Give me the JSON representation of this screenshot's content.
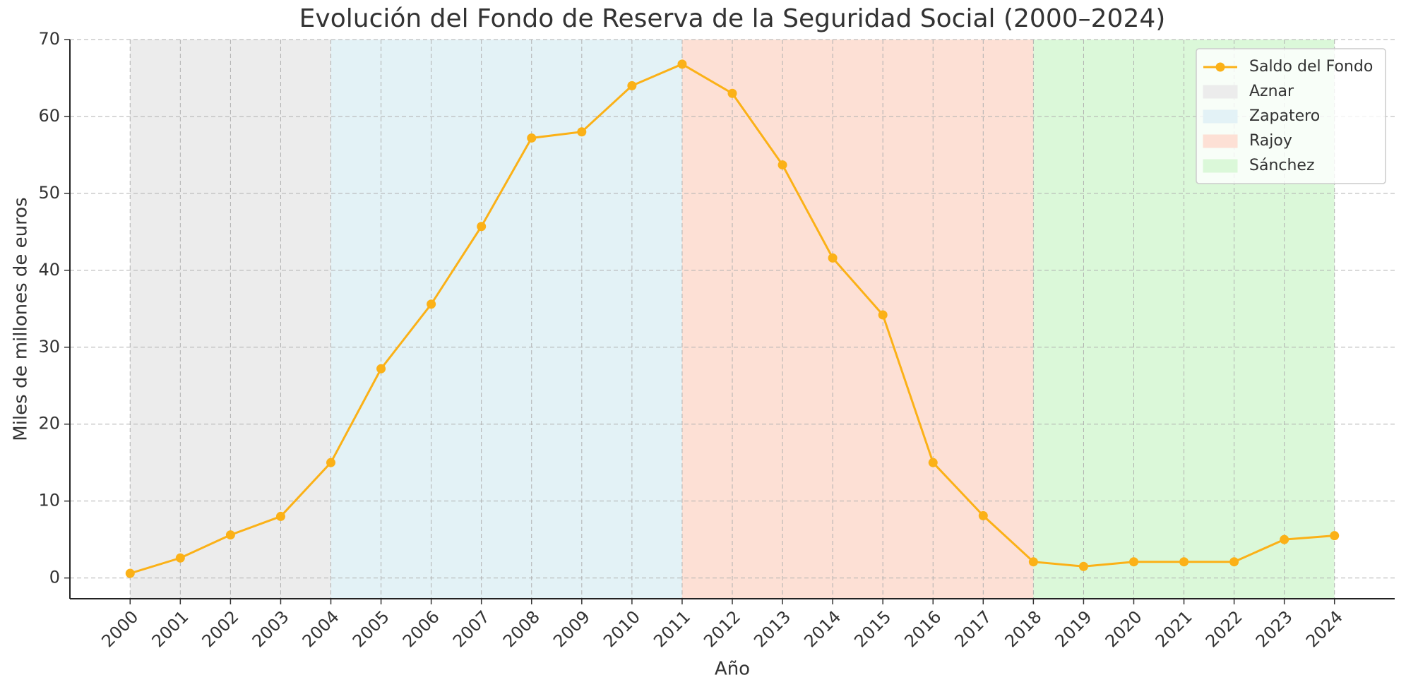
{
  "chart_data": {
    "type": "line",
    "title": "Evolución del Fondo de Reserva de la Seguridad Social (2000–2024)",
    "x_label": "Año",
    "y_label": "Miles de millones de euros",
    "x": [
      2000,
      2001,
      2002,
      2003,
      2004,
      2005,
      2006,
      2007,
      2008,
      2009,
      2010,
      2011,
      2012,
      2013,
      2014,
      2015,
      2016,
      2017,
      2018,
      2019,
      2020,
      2021,
      2022,
      2023,
      2024
    ],
    "series": [
      {
        "name": "Saldo del Fondo",
        "color": "#fbb117",
        "values": [
          0.6,
          2.6,
          5.6,
          8.0,
          15.0,
          27.2,
          35.6,
          45.7,
          57.2,
          58.0,
          64.0,
          66.8,
          63.0,
          53.7,
          41.6,
          34.2,
          15.0,
          8.1,
          2.1,
          1.5,
          2.1,
          2.1,
          2.1,
          5.0,
          5.5
        ]
      }
    ],
    "spans": [
      {
        "name": "Aznar",
        "start": 2000,
        "end": 2004,
        "color": "#ececec"
      },
      {
        "name": "Zapatero",
        "start": 2004,
        "end": 2011,
        "color": "#e3f2f6"
      },
      {
        "name": "Rajoy",
        "start": 2011,
        "end": 2018,
        "color": "#fde0d5"
      },
      {
        "name": "Sánchez",
        "start": 2018,
        "end": 2024,
        "color": "#dbf8d9"
      }
    ],
    "xlim": [
      1998.8,
      2025.2
    ],
    "xticks": [
      2000,
      2001,
      2002,
      2003,
      2004,
      2005,
      2006,
      2007,
      2008,
      2009,
      2010,
      2011,
      2012,
      2013,
      2014,
      2015,
      2016,
      2017,
      2018,
      2019,
      2020,
      2021,
      2022,
      2023,
      2024
    ],
    "ylim": [
      -2.7,
      70
    ],
    "yticks": [
      0,
      10,
      20,
      30,
      40,
      50,
      60,
      70
    ],
    "grid": true,
    "legend": "upper right"
  }
}
